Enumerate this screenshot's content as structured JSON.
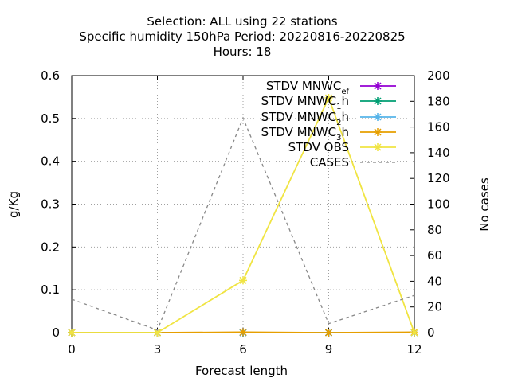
{
  "chart_data": {
    "type": "line",
    "title_lines": [
      "Selection: ALL using    22 stations",
      "Specific humidity 150hPa   Period: 20220816-20220825",
      "Hours:  18"
    ],
    "xlabel": "Forecast length",
    "ylabel": "g/Kg",
    "y2label": "No cases",
    "x": [
      0,
      3,
      6,
      9,
      12
    ],
    "xlim": [
      0,
      12
    ],
    "ylim": [
      0,
      0.6
    ],
    "y2lim": [
      0,
      200
    ],
    "xticks": [
      "0",
      "3",
      "6",
      "9",
      "12"
    ],
    "yticks": [
      "0",
      "0.1",
      "0.2",
      "0.3",
      "0.4",
      "0.5",
      "0.6"
    ],
    "y2ticks": [
      "0",
      "20",
      "40",
      "60",
      "80",
      "100",
      "120",
      "140",
      "160",
      "180",
      "200"
    ],
    "grid": true,
    "legend_position": "top-right",
    "series": [
      {
        "name": "STDV MNWC_ef",
        "label_main": "STDV MNWC",
        "label_sub": "ef",
        "color": "#9400d3",
        "marker": "x",
        "axis": "y1",
        "values": [
          0,
          0,
          0,
          0,
          0
        ]
      },
      {
        "name": "STDV MNWC_1h",
        "label_main": "STDV MNWC",
        "label_sub": "1",
        "label_tail": "h",
        "color": "#009e73",
        "marker": "x",
        "axis": "y1",
        "values": [
          0,
          0,
          0,
          0,
          0
        ]
      },
      {
        "name": "STDV MNWC_2h",
        "label_main": "STDV MNWC",
        "label_sub": "2",
        "label_tail": "h",
        "color": "#56b4e9",
        "marker": "x",
        "axis": "y1",
        "values": [
          0,
          0,
          0,
          0,
          0
        ]
      },
      {
        "name": "STDV MNWC_3h",
        "label_main": "STDV MNWC",
        "label_sub": "3",
        "label_tail": "h",
        "color": "#e69f00",
        "marker": "x",
        "axis": "y1",
        "values": [
          0,
          0,
          0.001,
          0,
          0.001
        ]
      },
      {
        "name": "STDV OBS",
        "label_main": "STDV OBS",
        "color": "#f0e442",
        "marker": "x",
        "axis": "y1",
        "values": [
          0,
          0,
          0.122,
          0.548,
          0
        ]
      },
      {
        "name": "CASES",
        "label_main": "CASES",
        "color": "#888888",
        "dashed": true,
        "axis": "y2",
        "values": [
          26,
          2,
          167,
          7,
          29
        ]
      }
    ]
  }
}
